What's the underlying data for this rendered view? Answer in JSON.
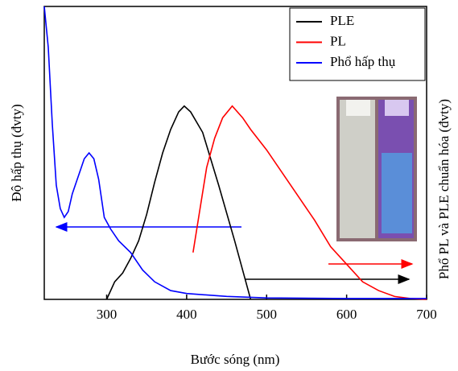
{
  "chart_data": {
    "type": "line",
    "xlabel": "Bước sóng (nm)",
    "ylabel": "Độ hấp thụ (đvty)",
    "y2label": "Phổ PL và PLE chuẩn hóa (đvty)",
    "xlim": [
      222,
      700
    ],
    "xticks": [
      300,
      400,
      500,
      600,
      700
    ],
    "ylim": [
      0,
      1
    ],
    "y2lim": [
      0,
      1
    ],
    "legend": "upper right",
    "series": [
      {
        "name": "PLE",
        "color": "#000000",
        "axis": "y2",
        "x": [
          300,
          310,
          320,
          330,
          340,
          350,
          360,
          370,
          380,
          390,
          397,
          405,
          420,
          440,
          460,
          475,
          480
        ],
        "values": [
          0,
          0.06,
          0.09,
          0.14,
          0.2,
          0.29,
          0.4,
          0.5,
          0.58,
          0.64,
          0.66,
          0.64,
          0.57,
          0.39,
          0.2,
          0.05,
          0
        ]
      },
      {
        "name": "PL",
        "color": "#ff0000",
        "axis": "y2",
        "x": [
          408,
          415,
          425,
          435,
          445,
          457,
          470,
          480,
          500,
          520,
          540,
          560,
          580,
          600,
          620,
          640,
          660,
          680,
          700
        ],
        "values": [
          0.16,
          0.28,
          0.45,
          0.55,
          0.62,
          0.66,
          0.62,
          0.58,
          0.51,
          0.43,
          0.35,
          0.27,
          0.18,
          0.12,
          0.06,
          0.03,
          0.01,
          0.003,
          0
        ]
      },
      {
        "name": "Phổ hấp thụ",
        "color": "#0000ff",
        "x": [
          222,
          227,
          232,
          237,
          242,
          247,
          252,
          257,
          262,
          267,
          272,
          278,
          284,
          290,
          297,
          305,
          315,
          330,
          345,
          360,
          380,
          400,
          450,
          500,
          600,
          700
        ],
        "values": [
          1.0,
          0.86,
          0.6,
          0.39,
          0.31,
          0.28,
          0.3,
          0.36,
          0.4,
          0.44,
          0.48,
          0.5,
          0.48,
          0.41,
          0.28,
          0.24,
          0.2,
          0.16,
          0.1,
          0.06,
          0.03,
          0.02,
          0.01,
          0.005,
          0.003,
          0.003
        ]
      }
    ]
  }
}
